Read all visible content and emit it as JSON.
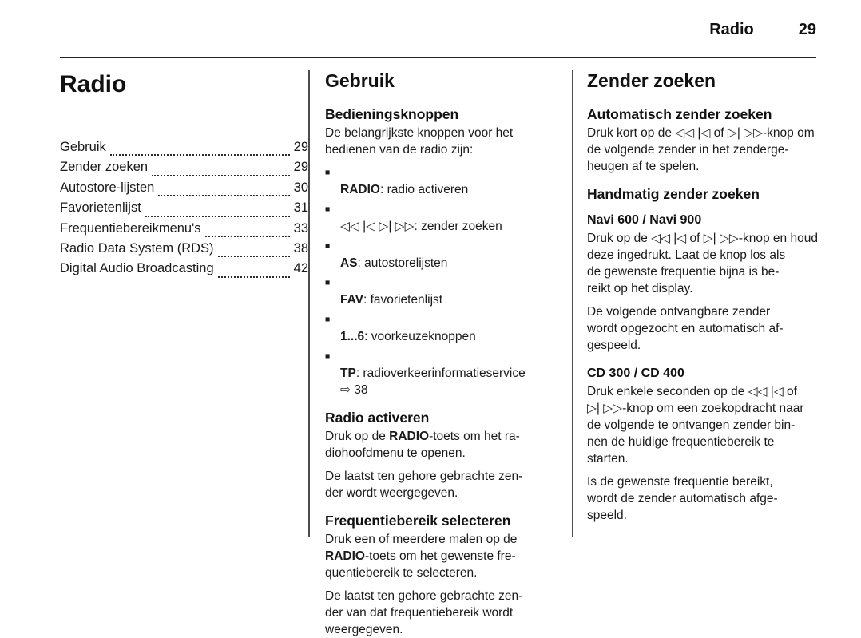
{
  "glyphs": {
    "bullet": "■"
  },
  "header": {
    "section": "Radio",
    "page": "29"
  },
  "toc": {
    "title": "Radio",
    "items": [
      {
        "label": "Gebruik",
        "page": "29"
      },
      {
        "label": "Zender zoeken",
        "page": "29"
      },
      {
        "label": "Autostore-lijsten",
        "page": "30"
      },
      {
        "label": "Favorietenlijst",
        "page": "31"
      },
      {
        "label": "Frequentiebereikmenu's",
        "page": "33"
      },
      {
        "label": "Radio Data System (RDS)",
        "page": "38"
      },
      {
        "label": "Digital Audio Broadcasting",
        "page": "42"
      }
    ]
  },
  "gebruik": {
    "title": "Gebruik",
    "bedieningsknoppen": {
      "heading": "Bedieningsknoppen",
      "intro": "De belangrijkste knoppen voor het\nbedienen van de radio zijn:",
      "buttons": [
        {
          "key": "RADIO",
          "desc": ": radio activeren"
        },
        {
          "key": "◁◁ |◁ ▷| ▷▷",
          "desc": ": zender zoeken"
        },
        {
          "key": "AS",
          "desc": ": autostorelijsten"
        },
        {
          "key": "FAV",
          "desc": ": favorietenlijst"
        },
        {
          "key": "1...6",
          "desc": ": voorkeuzeknoppen"
        },
        {
          "key": "TP",
          "desc": ": radioverkeerinformatieservice\n⇨ 38"
        }
      ]
    },
    "radio_activeren": {
      "heading": "Radio activeren",
      "p1_pre": "Druk op de ",
      "p1_bold": "RADIO",
      "p1_post": "-toets om het ra-\ndiohoofdmenu te openen.",
      "p2": "De laatst ten gehore gebrachte zen-\nder wordt weergegeven."
    },
    "frequentiebereik": {
      "heading": "Frequentiebereik selecteren",
      "p1_pre": "Druk een of meerdere malen op de\n",
      "p1_bold": "RADIO",
      "p1_post": "-toets om het gewenste fre-\nquentiebereik te selecteren.",
      "p2": "De laatst ten gehore gebrachte zen-\nder van dat frequentiebereik wordt\nweergegeven."
    }
  },
  "zender_zoeken": {
    "title": "Zender zoeken",
    "automatisch": {
      "heading": "Automatisch zender zoeken",
      "p1": "Druk kort op de ◁◁ |◁ of ▷| ▷▷-knop om\nde volgende zender in het zenderge-\nheugen af te spelen."
    },
    "handmatig": {
      "heading": "Handmatig zender zoeken",
      "navi": {
        "heading": "Navi 600 / Navi 900",
        "p1": "Druk op de ◁◁ |◁ of ▷| ▷▷-knop en houd\ndeze ingedrukt. Laat de knop los als\nde gewenste frequentie bijna is be-\nreikt op het display.",
        "p2": "De volgende ontvangbare zender\nwordt opgezocht en automatisch af-\ngespeeld."
      },
      "cd": {
        "heading": "CD 300 / CD 400",
        "p1": "Druk enkele seconden op de ◁◁ |◁ of\n▷| ▷▷-knop om een zoekopdracht naar\nde volgende te ontvangen zender bin-\nnen de huidige frequentiebereik te\nstarten.",
        "p2": "Is de gewenste frequentie bereikt,\nwordt de zender automatisch afge-\nspeeld."
      }
    }
  }
}
